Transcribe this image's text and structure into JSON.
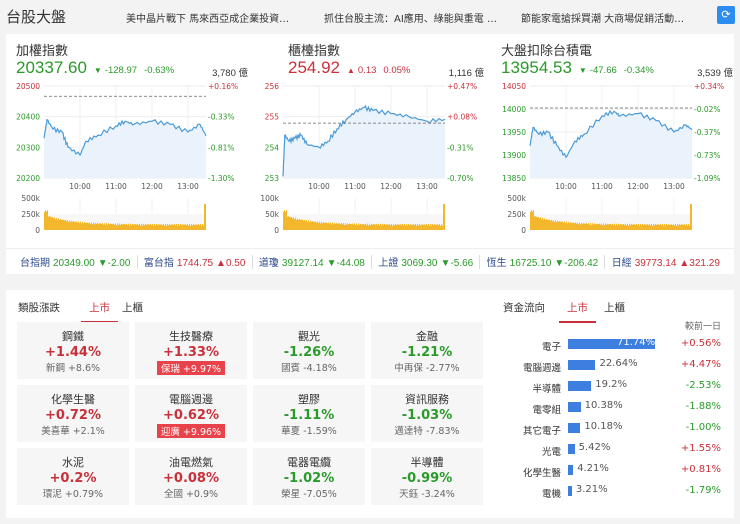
{
  "header": {
    "title": "台股大盤",
    "news": [
      "美中晶片戰下 馬來西亞成企業投資…",
      "抓住台股主流：AI應用、綠能與重電 …",
      "節能家電搶採買潮 大商場促銷活動…"
    ],
    "refresh_icon": "refresh-icon"
  },
  "indices": [
    {
      "name": "加權指數",
      "value": "20337.60",
      "change": "-128.97",
      "pct": "-0.63%",
      "dir": "down",
      "volume": "3,780 億"
    },
    {
      "name": "櫃檯指數",
      "value": "254.92",
      "change": "0.13",
      "pct": "0.05%",
      "dir": "up",
      "volume": "1,116 億"
    },
    {
      "name": "大盤扣除台積電",
      "value": "13954.53",
      "change": "-47.66",
      "pct": "-0.34%",
      "dir": "down",
      "volume": "3,539 億"
    }
  ],
  "chart_data": [
    {
      "type": "line",
      "ylim": [
        20200,
        20500
      ],
      "yticks": [
        "20500",
        "20400",
        "20300",
        "20200"
      ],
      "rticks": [
        "+0.16%",
        "-0.33%",
        "-0.81%",
        "-1.30%"
      ],
      "prev_close": 20466.57,
      "xticks": [
        "10:00",
        "11:00",
        "12:00",
        "13:00"
      ],
      "x": [
        "9:00",
        "9:05",
        "9:15",
        "9:30",
        "9:40",
        "10:00",
        "10:10",
        "10:30",
        "11:00",
        "11:15",
        "11:30",
        "12:00",
        "12:30",
        "13:00",
        "13:20",
        "13:30"
      ],
      "y": [
        20330,
        20390,
        20360,
        20350,
        20300,
        20275,
        20320,
        20340,
        20370,
        20385,
        20375,
        20385,
        20375,
        20350,
        20375,
        20338
      ],
      "volume_ticks": [
        "500k",
        "250k",
        "0"
      ],
      "volume_max": 500
    },
    {
      "type": "line",
      "ylim": [
        253,
        256
      ],
      "yticks": [
        "256",
        "255",
        "254",
        "253"
      ],
      "rticks": [
        "+0.47%",
        "+0.08%",
        "-0.31%",
        "-0.70%"
      ],
      "prev_close": 254.79,
      "xticks": [
        "10:00",
        "11:00",
        "12:00",
        "13:00"
      ],
      "x": [
        "9:00",
        "9:03",
        "9:10",
        "9:20",
        "9:30",
        "9:40",
        "10:00",
        "10:15",
        "10:30",
        "10:45",
        "11:00",
        "11:15",
        "11:30",
        "12:00",
        "12:30",
        "13:00",
        "13:30"
      ],
      "y": [
        253.05,
        254.4,
        254.2,
        254.3,
        254.4,
        254.1,
        254.0,
        254.2,
        254.6,
        254.9,
        255.15,
        255.3,
        255.2,
        255.1,
        255.0,
        254.85,
        254.92
      ],
      "volume_ticks": [
        "100k",
        "50k",
        "0"
      ],
      "volume_max": 100
    },
    {
      "type": "line",
      "ylim": [
        13850,
        14050
      ],
      "yticks": [
        "14050",
        "14000",
        "13950",
        "13900",
        "13850"
      ],
      "rticks": [
        "+0.34%",
        "-0.02%",
        "-0.37%",
        "-0.73%",
        "-1.09%"
      ],
      "prev_close": 14002.19,
      "xticks": [
        "10:00",
        "11:00",
        "12:00",
        "13:00"
      ],
      "x": [
        "9:00",
        "9:05",
        "9:15",
        "9:30",
        "9:45",
        "10:00",
        "10:15",
        "10:30",
        "11:00",
        "11:20",
        "11:30",
        "12:00",
        "12:30",
        "13:00",
        "13:20",
        "13:30"
      ],
      "y": [
        13920,
        13960,
        13945,
        13950,
        13920,
        13895,
        13930,
        13945,
        13985,
        13995,
        13985,
        13990,
        13975,
        13950,
        13965,
        13955
      ],
      "volume_ticks": [
        "500k",
        "250k",
        "0"
      ],
      "volume_max": 500
    }
  ],
  "ticker": [
    {
      "name": "台指期",
      "value": "20349.00",
      "change": "▼-2.00",
      "dir": "down"
    },
    {
      "name": "富台指",
      "value": "1744.75",
      "change": "▲0.50",
      "dir": "up"
    },
    {
      "name": "道瓊",
      "value": "39127.14",
      "change": "▼-44.08",
      "dir": "down"
    },
    {
      "name": "上證",
      "value": "3069.30",
      "change": "▼-5.66",
      "dir": "down"
    },
    {
      "name": "恆生",
      "value": "16725.10",
      "change": "▼-206.42",
      "dir": "down"
    },
    {
      "name": "日經",
      "value": "39773.14",
      "change": "▲321.29",
      "dir": "up"
    }
  ],
  "sectors": {
    "title": "類股漲跌",
    "tabs": [
      "上市",
      "上櫃"
    ],
    "items": [
      {
        "name": "鋼鐵",
        "pct": "+1.44%",
        "dir": "up",
        "top": "新鋼  +8.6%",
        "hl": false
      },
      {
        "name": "生技醫療",
        "pct": "+1.33%",
        "dir": "up",
        "top": "保瑞  +9.97%",
        "hl": true
      },
      {
        "name": "觀光",
        "pct": "-1.26%",
        "dir": "down",
        "top": "國賓  -4.18%",
        "hl": false
      },
      {
        "name": "金融",
        "pct": "-1.21%",
        "dir": "down",
        "top": "中再保  -2.77%",
        "hl": false
      },
      {
        "name": "化學生醫",
        "pct": "+0.72%",
        "dir": "up",
        "top": "美喜華  +2.1%",
        "hl": false
      },
      {
        "name": "電腦週邊",
        "pct": "+0.62%",
        "dir": "up",
        "top": "迎廣  +9.96%",
        "hl": true
      },
      {
        "name": "塑膠",
        "pct": "-1.11%",
        "dir": "down",
        "top": "華夏  -1.59%",
        "hl": false
      },
      {
        "name": "資訊服務",
        "pct": "-1.03%",
        "dir": "down",
        "top": "邁達特  -7.83%",
        "hl": false
      },
      {
        "name": "水泥",
        "pct": "+0.2%",
        "dir": "up",
        "top": "環泥  +0.79%",
        "hl": false
      },
      {
        "name": "油電燃氣",
        "pct": "+0.08%",
        "dir": "up",
        "top": "全國  +0.9%",
        "hl": false
      },
      {
        "name": "電器電纜",
        "pct": "-1.02%",
        "dir": "down",
        "top": "榮星  -7.05%",
        "hl": false
      },
      {
        "name": "半導體",
        "pct": "-0.99%",
        "dir": "down",
        "top": "天鈺  -3.24%",
        "hl": false
      }
    ]
  },
  "flow": {
    "title": "資金流向",
    "tabs": [
      "上市",
      "上櫃"
    ],
    "col_header": "較前一日",
    "items": [
      {
        "name": "電子",
        "pct": 71.74,
        "label": "71.74%",
        "delta": "+0.56%",
        "dir": "up"
      },
      {
        "name": "電腦週邊",
        "pct": 22.64,
        "label": "22.64%",
        "delta": "+4.47%",
        "dir": "up"
      },
      {
        "name": "半導體",
        "pct": 19.2,
        "label": "19.2%",
        "delta": "-2.53%",
        "dir": "down"
      },
      {
        "name": "電零組",
        "pct": 10.38,
        "label": "10.38%",
        "delta": "-1.88%",
        "dir": "down"
      },
      {
        "name": "其它電子",
        "pct": 10.18,
        "label": "10.18%",
        "delta": "-1.00%",
        "dir": "down"
      },
      {
        "name": "光電",
        "pct": 5.42,
        "label": "5.42%",
        "delta": "+1.55%",
        "dir": "up"
      },
      {
        "name": "化學生醫",
        "pct": 4.21,
        "label": "4.21%",
        "delta": "+0.81%",
        "dir": "up"
      },
      {
        "name": "電機",
        "pct": 3.21,
        "label": "3.21%",
        "delta": "-1.79%",
        "dir": "down"
      }
    ]
  },
  "colors": {
    "up": "#c8303a",
    "down": "#2a9a2a",
    "line": "#4a9ad8",
    "volume": "#f2b72c",
    "bar": "#3d7fe0"
  }
}
